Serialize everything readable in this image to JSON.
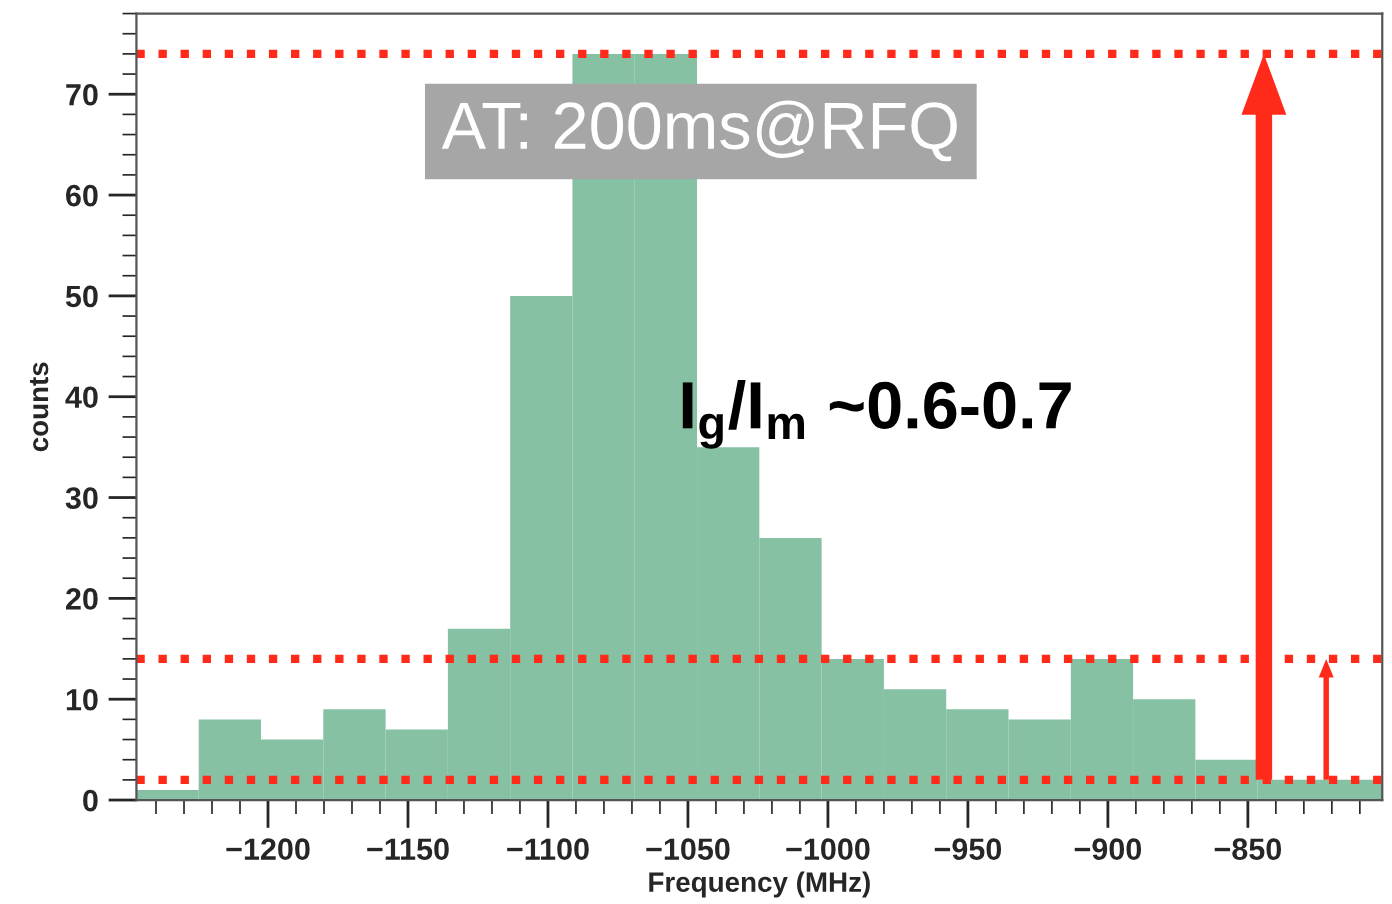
{
  "chart_data": {
    "type": "histogram",
    "xlabel": "Frequency (MHz)",
    "ylabel": "counts",
    "color": "#85c1a2",
    "bins": [
      -1247,
      -1224.75,
      -1202.5,
      -1180.25,
      -1158,
      -1135.75,
      -1113.5,
      -1091.25,
      -1069,
      -1046.75,
      -1024.5,
      -1002.25,
      -980,
      -957.75,
      -935.5,
      -913.25,
      -891,
      -868.75,
      -846.5,
      -824.25,
      -802
    ],
    "values": [
      1,
      8,
      6,
      9,
      7,
      17,
      50,
      74,
      74,
      35,
      26,
      14,
      11,
      9,
      8,
      14,
      10,
      4,
      2,
      2
    ],
    "xlim": [
      -1247,
      -802
    ],
    "ylim": [
      0,
      78
    ],
    "xticks": [
      {
        "value": -1200,
        "label": "−1200"
      },
      {
        "value": -1150,
        "label": "−1150"
      },
      {
        "value": -1100,
        "label": "−1100"
      },
      {
        "value": -1050,
        "label": "−1050"
      },
      {
        "value": -1000,
        "label": "−1000"
      },
      {
        "value": -950,
        "label": "−950"
      },
      {
        "value": -900,
        "label": "−900"
      },
      {
        "value": -850,
        "label": "−850"
      }
    ],
    "yticks": [
      0,
      10,
      20,
      30,
      40,
      50,
      60,
      70
    ],
    "ref_lines": [
      {
        "axis": "y",
        "value": 2,
        "color": "#ff2a1a",
        "line_style": "dotted"
      },
      {
        "axis": "y",
        "value": 74,
        "color": "#ff2a1a",
        "line_style": "dotted"
      },
      {
        "axis": "y",
        "value": 14,
        "color": "#ff2a1a",
        "line_style": "dotted"
      }
    ],
    "annotations": [
      "AT: 200ms@RFQ",
      "I$_{g}$/I$_{m}$ ~0.6-0.7"
    ],
    "grid": false
  }
}
